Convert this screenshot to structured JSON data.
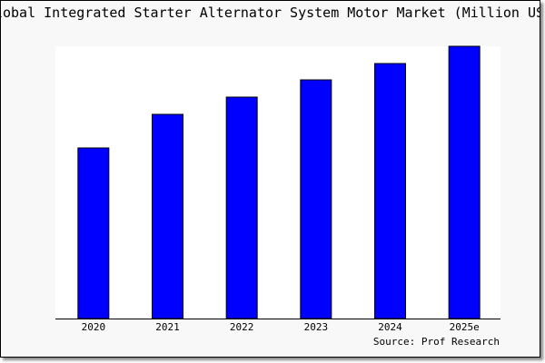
{
  "chart_data": {
    "type": "bar",
    "title": "Global Integrated Starter Alternator System Motor Market (Million USD)",
    "categories": [
      "2020",
      "2021",
      "2022",
      "2023",
      "2024",
      "2025e"
    ],
    "values": [
      188,
      225,
      244,
      263,
      281,
      300
    ],
    "ylim": [
      0,
      300
    ],
    "xlabel": "",
    "ylabel": "",
    "grid": false,
    "bar_color": "#0000ff",
    "source": "Source: Prof Research"
  }
}
